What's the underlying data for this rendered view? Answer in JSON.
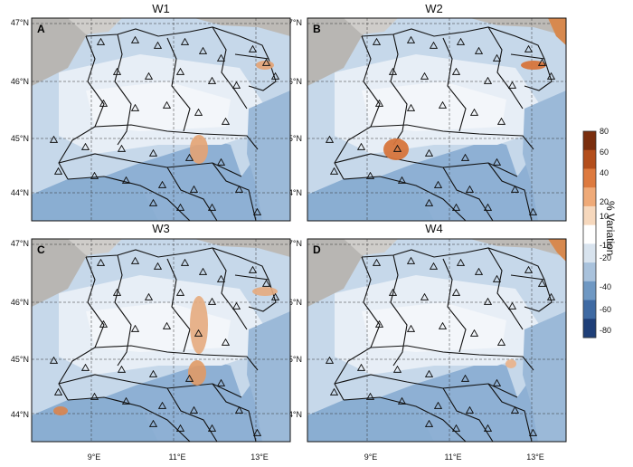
{
  "panels": [
    {
      "id": "A",
      "title": "W1"
    },
    {
      "id": "B",
      "title": "W2"
    },
    {
      "id": "C",
      "title": "W3"
    },
    {
      "id": "D",
      "title": "W4"
    }
  ],
  "lat_labels": [
    "47°N",
    "46°N",
    "45°N",
    "44°N"
  ],
  "lon_labels": [
    "9°E",
    "11°E",
    "13°E"
  ],
  "colorbar": {
    "title": "% Variation",
    "ticks": [
      "80",
      "60",
      "40",
      "20",
      "10",
      "-10",
      "-20",
      "-40",
      "-60",
      "-80"
    ],
    "colors": [
      "#7a2e0e",
      "#b34e1c",
      "#dd7a3f",
      "#efaa78",
      "#f6d8bd",
      "#ffffff",
      "#d8e3ee",
      "#a9c2dc",
      "#6f98c3",
      "#3f6aa3",
      "#1f3f78"
    ]
  },
  "station_marker": "triangle-outline"
}
